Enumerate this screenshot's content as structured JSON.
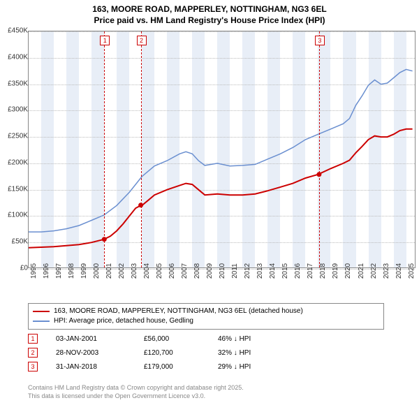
{
  "title_line1": "163, MOORE ROAD, MAPPERLEY, NOTTINGHAM, NG3 6EL",
  "title_line2": "Price paid vs. HM Land Registry's House Price Index (HPI)",
  "chart": {
    "type": "line",
    "xlim": [
      1995,
      2025.8
    ],
    "ylim": [
      0,
      450
    ],
    "ytick_step": 50,
    "yticks": [
      "£0",
      "£50K",
      "£100K",
      "£150K",
      "£200K",
      "£250K",
      "£300K",
      "£350K",
      "£400K",
      "£450K"
    ],
    "xticks": [
      1995,
      1996,
      1997,
      1998,
      1999,
      2000,
      2001,
      2002,
      2003,
      2004,
      2005,
      2006,
      2007,
      2008,
      2009,
      2010,
      2011,
      2012,
      2013,
      2014,
      2015,
      2016,
      2017,
      2018,
      2019,
      2020,
      2021,
      2022,
      2023,
      2024,
      2025
    ],
    "background_color": "#ffffff",
    "band_color": "#e8eef7",
    "grid_color": "#bbbbbb",
    "marker_line_color": "#cc0000",
    "series": {
      "price_paid": {
        "label": "163, MOORE ROAD, MAPPERLEY, NOTTINGHAM, NG3 6EL (detached house)",
        "color": "#cc0000",
        "width": 2,
        "points": [
          [
            1995,
            40
          ],
          [
            1996,
            41
          ],
          [
            1997,
            42
          ],
          [
            1998,
            44
          ],
          [
            1999,
            46
          ],
          [
            2000,
            50
          ],
          [
            2001,
            56
          ],
          [
            2001.5,
            62
          ],
          [
            2002,
            72
          ],
          [
            2002.5,
            85
          ],
          [
            2003,
            100
          ],
          [
            2003.5,
            115
          ],
          [
            2003.9,
            120
          ],
          [
            2004,
            120
          ],
          [
            2004.5,
            130
          ],
          [
            2005,
            140
          ],
          [
            2006,
            150
          ],
          [
            2007,
            158
          ],
          [
            2007.5,
            162
          ],
          [
            2008,
            160
          ],
          [
            2008.5,
            150
          ],
          [
            2009,
            140
          ],
          [
            2010,
            142
          ],
          [
            2011,
            140
          ],
          [
            2012,
            140
          ],
          [
            2013,
            142
          ],
          [
            2014,
            148
          ],
          [
            2015,
            155
          ],
          [
            2016,
            162
          ],
          [
            2017,
            172
          ],
          [
            2018,
            179
          ],
          [
            2019,
            190
          ],
          [
            2020,
            200
          ],
          [
            2020.5,
            206
          ],
          [
            2021,
            220
          ],
          [
            2021.5,
            232
          ],
          [
            2022,
            245
          ],
          [
            2022.5,
            252
          ],
          [
            2023,
            250
          ],
          [
            2023.5,
            250
          ],
          [
            2024,
            255
          ],
          [
            2024.5,
            262
          ],
          [
            2025,
            265
          ],
          [
            2025.5,
            265
          ]
        ],
        "markers": [
          {
            "x": 2001.01,
            "y": 56
          },
          {
            "x": 2003.91,
            "y": 120.7
          },
          {
            "x": 2018.08,
            "y": 179
          }
        ]
      },
      "hpi": {
        "label": "HPI: Average price, detached house, Gedling",
        "color": "#6a8fd0",
        "width": 1.5,
        "points": [
          [
            1995,
            70
          ],
          [
            1996,
            70
          ],
          [
            1997,
            72
          ],
          [
            1998,
            76
          ],
          [
            1999,
            82
          ],
          [
            2000,
            92
          ],
          [
            2001,
            102
          ],
          [
            2002,
            120
          ],
          [
            2003,
            145
          ],
          [
            2003.5,
            160
          ],
          [
            2004,
            175
          ],
          [
            2004.5,
            185
          ],
          [
            2005,
            195
          ],
          [
            2006,
            205
          ],
          [
            2007,
            218
          ],
          [
            2007.5,
            222
          ],
          [
            2008,
            218
          ],
          [
            2008.5,
            205
          ],
          [
            2009,
            196
          ],
          [
            2010,
            200
          ],
          [
            2011,
            195
          ],
          [
            2012,
            196
          ],
          [
            2013,
            198
          ],
          [
            2014,
            208
          ],
          [
            2015,
            218
          ],
          [
            2016,
            230
          ],
          [
            2017,
            245
          ],
          [
            2018,
            255
          ],
          [
            2019,
            265
          ],
          [
            2020,
            275
          ],
          [
            2020.5,
            285
          ],
          [
            2021,
            310
          ],
          [
            2021.5,
            328
          ],
          [
            2022,
            348
          ],
          [
            2022.5,
            358
          ],
          [
            2023,
            350
          ],
          [
            2023.5,
            352
          ],
          [
            2024,
            362
          ],
          [
            2024.5,
            372
          ],
          [
            2025,
            378
          ],
          [
            2025.5,
            375
          ]
        ]
      }
    },
    "annotations": [
      {
        "n": "1",
        "x": 2001.01
      },
      {
        "n": "2",
        "x": 2003.91
      },
      {
        "n": "3",
        "x": 2018.08
      }
    ]
  },
  "legend": [
    {
      "color": "#cc0000",
      "label": "163, MOORE ROAD, MAPPERLEY, NOTTINGHAM, NG3 6EL (detached house)"
    },
    {
      "color": "#6a8fd0",
      "label": "HPI: Average price, detached house, Gedling"
    }
  ],
  "events": [
    {
      "n": "1",
      "date": "03-JAN-2001",
      "price": "£56,000",
      "pct": "46% ↓ HPI"
    },
    {
      "n": "2",
      "date": "28-NOV-2003",
      "price": "£120,700",
      "pct": "32% ↓ HPI"
    },
    {
      "n": "3",
      "date": "31-JAN-2018",
      "price": "£179,000",
      "pct": "29% ↓ HPI"
    }
  ],
  "footer_line1": "Contains HM Land Registry data © Crown copyright and database right 2025.",
  "footer_line2": "This data is licensed under the Open Government Licence v3.0."
}
